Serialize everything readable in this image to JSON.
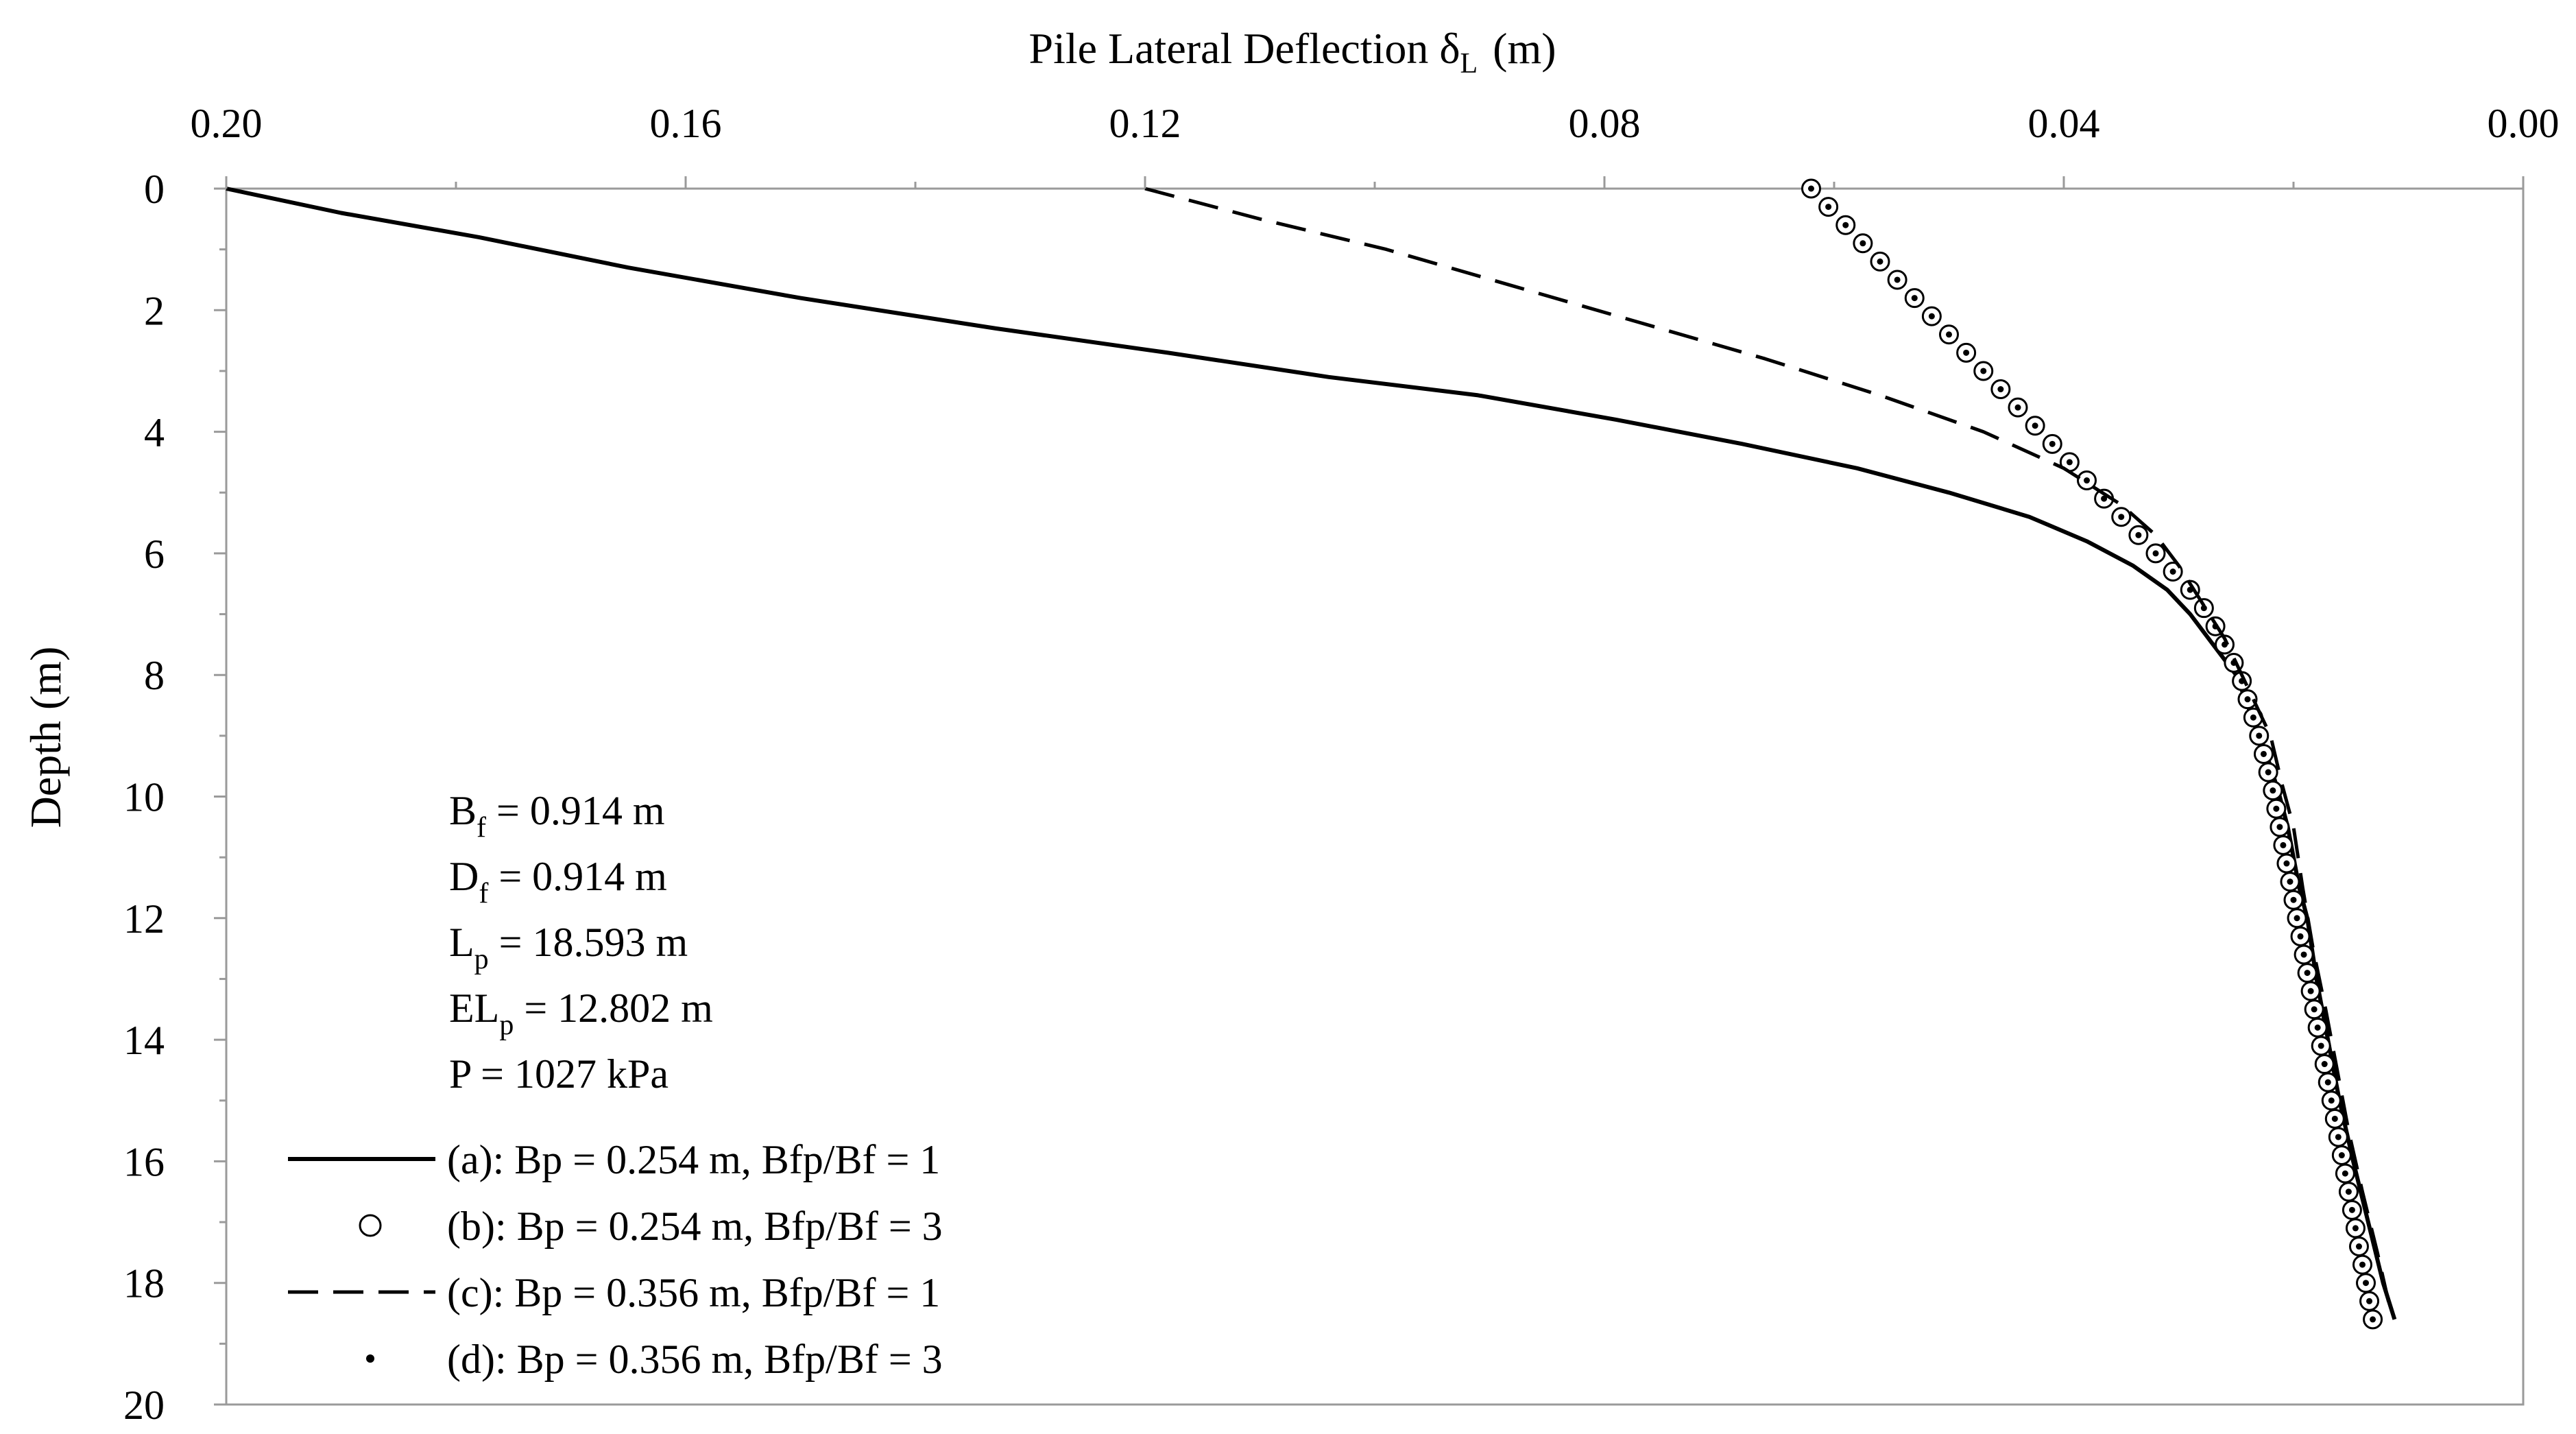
{
  "chart_data": {
    "type": "line",
    "title": "",
    "xlabel": "Pile Lateral Deflection",
    "xlabel_symbol": "δ",
    "xlabel_symbol_sub": "L",
    "xlabel_unit": "(m)",
    "ylabel": "Depth (m)",
    "xlim": [
      0.2,
      0.0
    ],
    "x_reversed": true,
    "x_axis_position": "top",
    "ylim": [
      0,
      20
    ],
    "y_inverted": true,
    "x_ticks": [
      0.2,
      0.16,
      0.12,
      0.08,
      0.04,
      0.0
    ],
    "x_tick_labels": [
      "0.20",
      "0.16",
      "0.12",
      "0.08",
      "0.04",
      "0.00"
    ],
    "y_ticks": [
      0,
      2,
      4,
      6,
      8,
      10,
      12,
      14,
      16,
      18,
      20
    ],
    "y_tick_labels": [
      "0",
      "2",
      "4",
      "6",
      "8",
      "10",
      "12",
      "14",
      "16",
      "18",
      "20"
    ],
    "grid": false,
    "annotations": [
      {
        "main": "B",
        "sub": "f",
        "rest": "  = 0.914 m"
      },
      {
        "main": "D",
        "sub": "f",
        "rest": "  = 0.914 m"
      },
      {
        "main": "L",
        "sub": "p",
        "rest": " = 18.593 m"
      },
      {
        "main": "EL",
        "sub": "p",
        "rest": " = 12.802 m"
      },
      {
        "main": "P  = 1027  kPa",
        "sub": "",
        "rest": ""
      }
    ],
    "series": [
      {
        "name": "(a): Bp = 0.254 m, Bfp/Bf = 1",
        "style": "solid",
        "points": [
          [
            0.2,
            0
          ],
          [
            0.19,
            0.4
          ],
          [
            0.178,
            0.8
          ],
          [
            0.165,
            1.3
          ],
          [
            0.15,
            1.8
          ],
          [
            0.133,
            2.3
          ],
          [
            0.118,
            2.7
          ],
          [
            0.104,
            3.1
          ],
          [
            0.091,
            3.4
          ],
          [
            0.079,
            3.8
          ],
          [
            0.068,
            4.2
          ],
          [
            0.058,
            4.6
          ],
          [
            0.05,
            5.0
          ],
          [
            0.043,
            5.4
          ],
          [
            0.038,
            5.8
          ],
          [
            0.034,
            6.2
          ],
          [
            0.031,
            6.6
          ],
          [
            0.029,
            7.0
          ],
          [
            0.027,
            7.5
          ],
          [
            0.025,
            8.0
          ],
          [
            0.024,
            8.5
          ],
          [
            0.023,
            9.0
          ],
          [
            0.022,
            9.5
          ],
          [
            0.0212,
            10.0
          ],
          [
            0.0205,
            10.5
          ],
          [
            0.02,
            11.0
          ],
          [
            0.0195,
            11.5
          ],
          [
            0.0188,
            12.0
          ],
          [
            0.018,
            13.0
          ],
          [
            0.017,
            14.0
          ],
          [
            0.016,
            15.0
          ],
          [
            0.0148,
            16.0
          ],
          [
            0.0135,
            17.0
          ],
          [
            0.0122,
            18.0
          ],
          [
            0.0112,
            18.6
          ]
        ]
      },
      {
        "name": "(b): Bp = 0.254 m, Bfp/Bf = 3",
        "style": "open-circle",
        "points": [
          [
            0.062,
            0
          ],
          [
            0.0605,
            0.3
          ],
          [
            0.059,
            0.6
          ],
          [
            0.0575,
            0.9
          ],
          [
            0.056,
            1.2
          ],
          [
            0.0545,
            1.5
          ],
          [
            0.053,
            1.8
          ],
          [
            0.0515,
            2.1
          ],
          [
            0.05,
            2.4
          ],
          [
            0.0485,
            2.7
          ],
          [
            0.047,
            3.0
          ],
          [
            0.0455,
            3.3
          ],
          [
            0.044,
            3.6
          ],
          [
            0.0425,
            3.9
          ],
          [
            0.041,
            4.2
          ],
          [
            0.0395,
            4.5
          ],
          [
            0.038,
            4.8
          ],
          [
            0.0365,
            5.1
          ],
          [
            0.035,
            5.4
          ],
          [
            0.0335,
            5.7
          ],
          [
            0.032,
            6.0
          ],
          [
            0.0305,
            6.3
          ],
          [
            0.029,
            6.6
          ],
          [
            0.0278,
            6.9
          ],
          [
            0.0268,
            7.2
          ],
          [
            0.026,
            7.5
          ],
          [
            0.0252,
            7.8
          ],
          [
            0.0245,
            8.1
          ],
          [
            0.024,
            8.4
          ],
          [
            0.0235,
            8.7
          ],
          [
            0.023,
            9.0
          ],
          [
            0.0226,
            9.3
          ],
          [
            0.0222,
            9.6
          ],
          [
            0.0218,
            9.9
          ],
          [
            0.0215,
            10.2
          ],
          [
            0.0212,
            10.5
          ],
          [
            0.0209,
            10.8
          ],
          [
            0.0206,
            11.1
          ],
          [
            0.0203,
            11.4
          ],
          [
            0.02,
            11.7
          ],
          [
            0.0197,
            12.0
          ],
          [
            0.0194,
            12.3
          ],
          [
            0.0191,
            12.6
          ],
          [
            0.0188,
            12.9
          ],
          [
            0.0185,
            13.2
          ],
          [
            0.0182,
            13.5
          ],
          [
            0.0179,
            13.8
          ],
          [
            0.0176,
            14.1
          ],
          [
            0.0173,
            14.4
          ],
          [
            0.017,
            14.7
          ],
          [
            0.0167,
            15.0
          ],
          [
            0.0164,
            15.3
          ],
          [
            0.0161,
            15.6
          ],
          [
            0.0158,
            15.9
          ],
          [
            0.0155,
            16.2
          ],
          [
            0.0152,
            16.5
          ],
          [
            0.0149,
            16.8
          ],
          [
            0.0146,
            17.1
          ],
          [
            0.0143,
            17.4
          ],
          [
            0.014,
            17.7
          ],
          [
            0.0137,
            18.0
          ],
          [
            0.0134,
            18.3
          ],
          [
            0.0131,
            18.6
          ]
        ]
      },
      {
        "name": "(c): Bp = 0.356 m, Bfp/Bf = 1",
        "style": "dashed",
        "points": [
          [
            0.12,
            0
          ],
          [
            0.11,
            0.5
          ],
          [
            0.099,
            1.0
          ],
          [
            0.088,
            1.6
          ],
          [
            0.077,
            2.2
          ],
          [
            0.066,
            2.8
          ],
          [
            0.056,
            3.4
          ],
          [
            0.047,
            4.0
          ],
          [
            0.04,
            4.6
          ],
          [
            0.035,
            5.2
          ],
          [
            0.032,
            5.7
          ],
          [
            0.03,
            6.2
          ],
          [
            0.028,
            6.8
          ],
          [
            0.026,
            7.4
          ],
          [
            0.024,
            8.2
          ],
          [
            0.022,
            9.0
          ],
          [
            0.021,
            9.8
          ],
          [
            0.02,
            10.5
          ],
          [
            0.0192,
            11.5
          ],
          [
            0.0183,
            12.5
          ],
          [
            0.0172,
            13.5
          ],
          [
            0.0162,
            14.5
          ],
          [
            0.0152,
            15.5
          ],
          [
            0.014,
            16.5
          ],
          [
            0.0127,
            17.5
          ],
          [
            0.0115,
            18.5
          ]
        ]
      },
      {
        "name": "(d): Bp = 0.356 m, Bfp/Bf = 3",
        "style": "dot",
        "points": [
          [
            0.062,
            0
          ],
          [
            0.0605,
            0.3
          ],
          [
            0.059,
            0.6
          ],
          [
            0.0575,
            0.9
          ],
          [
            0.056,
            1.2
          ],
          [
            0.0545,
            1.5
          ],
          [
            0.053,
            1.8
          ],
          [
            0.0515,
            2.1
          ],
          [
            0.05,
            2.4
          ],
          [
            0.0485,
            2.7
          ],
          [
            0.047,
            3.0
          ],
          [
            0.0455,
            3.3
          ],
          [
            0.044,
            3.6
          ],
          [
            0.0425,
            3.9
          ],
          [
            0.041,
            4.2
          ],
          [
            0.0395,
            4.5
          ],
          [
            0.038,
            4.8
          ],
          [
            0.0365,
            5.1
          ],
          [
            0.035,
            5.4
          ],
          [
            0.0335,
            5.7
          ],
          [
            0.032,
            6.0
          ],
          [
            0.0305,
            6.3
          ],
          [
            0.029,
            6.6
          ],
          [
            0.0278,
            6.9
          ],
          [
            0.0268,
            7.2
          ],
          [
            0.026,
            7.5
          ],
          [
            0.0252,
            7.8
          ],
          [
            0.0245,
            8.1
          ],
          [
            0.024,
            8.4
          ],
          [
            0.0235,
            8.7
          ],
          [
            0.023,
            9.0
          ],
          [
            0.0226,
            9.3
          ],
          [
            0.0222,
            9.6
          ],
          [
            0.0218,
            9.9
          ],
          [
            0.0215,
            10.2
          ],
          [
            0.0212,
            10.5
          ],
          [
            0.0209,
            10.8
          ],
          [
            0.0206,
            11.1
          ],
          [
            0.0203,
            11.4
          ],
          [
            0.02,
            11.7
          ],
          [
            0.0197,
            12.0
          ],
          [
            0.0194,
            12.3
          ],
          [
            0.0191,
            12.6
          ],
          [
            0.0188,
            12.9
          ],
          [
            0.0185,
            13.2
          ],
          [
            0.0182,
            13.5
          ],
          [
            0.0179,
            13.8
          ],
          [
            0.0176,
            14.1
          ],
          [
            0.0173,
            14.4
          ],
          [
            0.017,
            14.7
          ],
          [
            0.0167,
            15.0
          ],
          [
            0.0164,
            15.3
          ],
          [
            0.0161,
            15.6
          ],
          [
            0.0158,
            15.9
          ],
          [
            0.0155,
            16.2
          ],
          [
            0.0152,
            16.5
          ],
          [
            0.0149,
            16.8
          ],
          [
            0.0146,
            17.1
          ],
          [
            0.0143,
            17.4
          ],
          [
            0.014,
            17.7
          ],
          [
            0.0137,
            18.0
          ],
          [
            0.0134,
            18.3
          ],
          [
            0.0131,
            18.6
          ]
        ]
      }
    ],
    "legend_position": "bottom-left",
    "colors": {
      "line": "#000000",
      "background": "#ffffff"
    }
  }
}
